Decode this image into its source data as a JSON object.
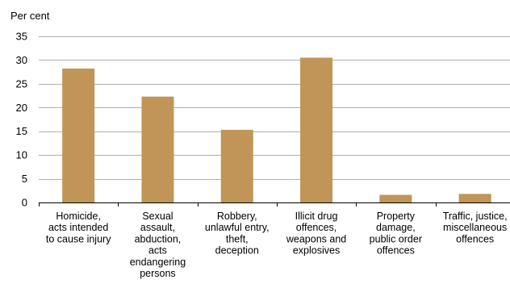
{
  "chart_data": {
    "type": "bar",
    "title": "",
    "xlabel": "",
    "ylabel": "Per cent",
    "ylim": [
      0,
      35
    ],
    "yticks": [
      0,
      5,
      10,
      15,
      20,
      25,
      30,
      35
    ],
    "grid": true,
    "categories": [
      [
        "Homicide,",
        "acts intended",
        "to cause injury"
      ],
      [
        "Sexual",
        "assault,",
        "abduction,",
        "acts",
        "endangering",
        "persons"
      ],
      [
        "Robbery,",
        "unlawful entry,",
        "theft,",
        "deception"
      ],
      [
        "Illicit drug",
        "offences,",
        "weapons and",
        "explosives"
      ],
      [
        "Property",
        "damage,",
        "public order",
        "offences"
      ],
      [
        "Traffic, justice,",
        "miscellaneous",
        "offences"
      ]
    ],
    "values": [
      28.2,
      22.3,
      15.3,
      30.5,
      1.6,
      1.8
    ],
    "colors": {
      "bar": "#c09557",
      "grid": "#b0b0b0",
      "axis": "#000000"
    }
  }
}
